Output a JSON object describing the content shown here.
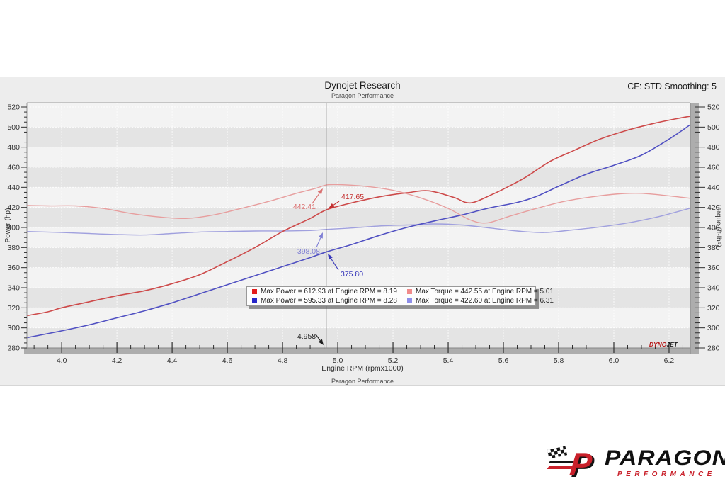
{
  "header": {
    "title": "Dynojet Research",
    "subtitle": "Paragon Performance",
    "cf_smoothing": "CF: STD Smoothing: 5"
  },
  "chart_data": {
    "type": "line",
    "title": "Dynojet Research",
    "subtitle": "Paragon Performance",
    "xlabel": "Engine RPM (rpmx1000)",
    "footer": "Paragon Performance",
    "ylabel_left": "Power (hp)",
    "ylabel_right": "Torque (ft-lbs)",
    "xlim": [
      3.874,
      6.277
    ],
    "ylim": [
      280,
      520
    ],
    "x_ticks": [
      4.0,
      4.2,
      4.4,
      4.6,
      4.8,
      5.0,
      5.2,
      5.4,
      5.6,
      5.8,
      6.0,
      6.2
    ],
    "y_ticks": [
      280,
      300,
      320,
      340,
      360,
      380,
      400,
      420,
      440,
      460,
      480,
      500,
      520
    ],
    "grid": "alternating-bands",
    "legend_position": "center",
    "cursor": {
      "rpm": 4.958,
      "label": "4.958"
    },
    "series": [
      {
        "name": "torque_run_2",
        "color": "#a0a0de",
        "width": 1.4,
        "points": [
          [
            3.87,
            396
          ],
          [
            4.0,
            395
          ],
          [
            4.1,
            394
          ],
          [
            4.2,
            393
          ],
          [
            4.3,
            392.5
          ],
          [
            4.4,
            394
          ],
          [
            4.5,
            395.5
          ],
          [
            4.6,
            396
          ],
          [
            4.7,
            396.5
          ],
          [
            4.8,
            396.5
          ],
          [
            4.9,
            397
          ],
          [
            4.96,
            398.1
          ],
          [
            5.05,
            399.5
          ],
          [
            5.15,
            401.5
          ],
          [
            5.25,
            402.5
          ],
          [
            5.35,
            403.5
          ],
          [
            5.45,
            402.5
          ],
          [
            5.55,
            399.5
          ],
          [
            5.65,
            396.5
          ],
          [
            5.75,
            395
          ],
          [
            5.85,
            397.5
          ],
          [
            5.95,
            400.5
          ],
          [
            6.05,
            404.5
          ],
          [
            6.15,
            410
          ],
          [
            6.22,
            415
          ],
          [
            6.28,
            419.5
          ]
        ]
      },
      {
        "name": "power_run_2",
        "color": "#5050c2",
        "width": 1.6,
        "points": [
          [
            3.87,
            290
          ],
          [
            4.0,
            297
          ],
          [
            4.1,
            303
          ],
          [
            4.2,
            310
          ],
          [
            4.3,
            317
          ],
          [
            4.4,
            325
          ],
          [
            4.5,
            334
          ],
          [
            4.6,
            343
          ],
          [
            4.7,
            352
          ],
          [
            4.8,
            361
          ],
          [
            4.9,
            370
          ],
          [
            4.96,
            375.8
          ],
          [
            5.05,
            383
          ],
          [
            5.15,
            392
          ],
          [
            5.25,
            400
          ],
          [
            5.35,
            406.5
          ],
          [
            5.45,
            412.5
          ],
          [
            5.55,
            419.5
          ],
          [
            5.65,
            425
          ],
          [
            5.72,
            431
          ],
          [
            5.8,
            441
          ],
          [
            5.9,
            453
          ],
          [
            6.0,
            462
          ],
          [
            6.1,
            472
          ],
          [
            6.2,
            488
          ],
          [
            6.28,
            503
          ]
        ]
      },
      {
        "name": "torque_run_1",
        "color": "#e79e9e",
        "width": 1.4,
        "points": [
          [
            3.87,
            422
          ],
          [
            3.95,
            421.5
          ],
          [
            4.05,
            421.5
          ],
          [
            4.15,
            419
          ],
          [
            4.25,
            414
          ],
          [
            4.35,
            410.5
          ],
          [
            4.45,
            409
          ],
          [
            4.55,
            412.5
          ],
          [
            4.65,
            419
          ],
          [
            4.75,
            426
          ],
          [
            4.85,
            434
          ],
          [
            4.92,
            439
          ],
          [
            4.96,
            442.4
          ],
          [
            5.01,
            442.6
          ],
          [
            5.1,
            441
          ],
          [
            5.2,
            437
          ],
          [
            5.3,
            429.5
          ],
          [
            5.4,
            419
          ],
          [
            5.48,
            407.5
          ],
          [
            5.54,
            404.5
          ],
          [
            5.62,
            411
          ],
          [
            5.72,
            419
          ],
          [
            5.82,
            426
          ],
          [
            5.92,
            430.5
          ],
          [
            6.02,
            433.5
          ],
          [
            6.1,
            434
          ],
          [
            6.2,
            431.5
          ],
          [
            6.28,
            429
          ]
        ]
      },
      {
        "name": "power_run_1",
        "color": "#cd4a4a",
        "width": 1.6,
        "points": [
          [
            3.87,
            312
          ],
          [
            3.95,
            316
          ],
          [
            4.0,
            320
          ],
          [
            4.1,
            326
          ],
          [
            4.2,
            332
          ],
          [
            4.3,
            337
          ],
          [
            4.4,
            344
          ],
          [
            4.5,
            353
          ],
          [
            4.6,
            366
          ],
          [
            4.7,
            380
          ],
          [
            4.8,
            396
          ],
          [
            4.9,
            409
          ],
          [
            4.96,
            417.7
          ],
          [
            5.05,
            424.5
          ],
          [
            5.15,
            430.5
          ],
          [
            5.25,
            434.5
          ],
          [
            5.33,
            436.5
          ],
          [
            5.42,
            430
          ],
          [
            5.48,
            424.5
          ],
          [
            5.56,
            433
          ],
          [
            5.62,
            441
          ],
          [
            5.68,
            450
          ],
          [
            5.77,
            466
          ],
          [
            5.85,
            476
          ],
          [
            5.95,
            488
          ],
          [
            6.05,
            497
          ],
          [
            6.15,
            504
          ],
          [
            6.22,
            508
          ],
          [
            6.28,
            511
          ]
        ]
      }
    ],
    "annotations": [
      {
        "label": "442.41",
        "value": 442.41,
        "color": "#da7070"
      },
      {
        "label": "417.65",
        "value": 417.65,
        "color": "#c42f2f"
      },
      {
        "label": "398.08",
        "value": 398.08,
        "color": "#8080d5"
      },
      {
        "label": "375.80",
        "value": 375.8,
        "color": "#3636ba"
      },
      {
        "label": "4.958",
        "value": null,
        "color": "#1f1f1f"
      }
    ],
    "legend": [
      {
        "swatch": "#e31b1b",
        "text": "Max Power = 612.93 at Engine RPM = 8.19"
      },
      {
        "swatch": "#f18b8b",
        "text": "Max Torque = 442.55 at Engine RPM = 5.01"
      },
      {
        "swatch": "#2626c9",
        "text": "Max Power = 595.33 at Engine RPM = 8.28"
      },
      {
        "swatch": "#8e8ee9",
        "text": "Max Torque = 422.60 at Engine RPM = 6.31"
      }
    ],
    "watermark": {
      "part1": "DYNO",
      "part2": "JET",
      "color1": "#b61a1a",
      "color2": "#1a1a1a"
    }
  },
  "logo": {
    "mark": "P",
    "brand": "PARAGON",
    "sub": "PERFORMANCE"
  }
}
